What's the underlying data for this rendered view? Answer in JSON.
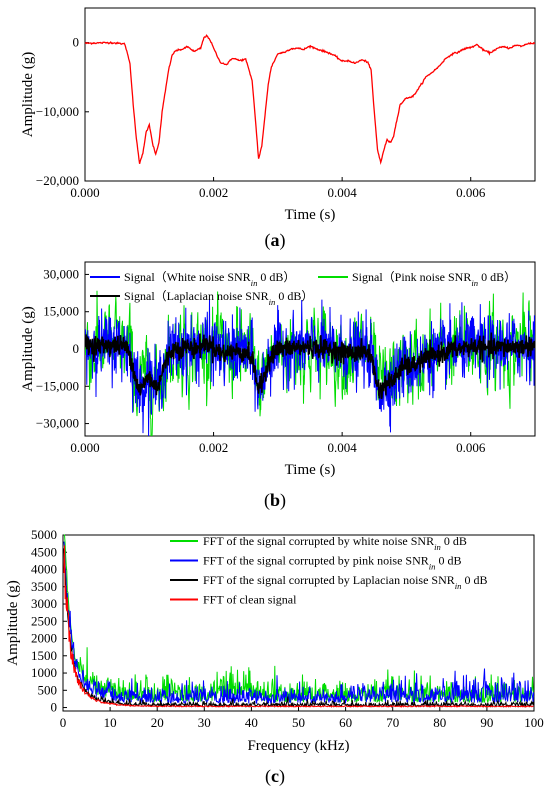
{
  "chart_data": [
    {
      "type": "line",
      "panel_label_letter": "a",
      "xlabel": "Time (s)",
      "ylabel": "Amplitude (g)",
      "xlim": [
        0,
        0.007
      ],
      "ylim": [
        -20000,
        5000
      ],
      "xticks": [
        0.0,
        0.002,
        0.004,
        0.006
      ],
      "xtick_labels": [
        "0.000",
        "0.002",
        "0.004",
        "0.006"
      ],
      "yticks": [
        0,
        -10000,
        -20000
      ],
      "ytick_labels": [
        "0",
        "−10,000",
        "−20,000"
      ],
      "grid": false,
      "series": [
        {
          "color": "#ff0000",
          "x": [
            0.0,
            0.0004,
            0.00062,
            0.0007,
            0.00075,
            0.0008,
            0.00085,
            0.0009,
            0.00095,
            0.001,
            0.00105,
            0.0011,
            0.00115,
            0.0012,
            0.00125,
            0.0013,
            0.00135,
            0.0014,
            0.0015,
            0.0016,
            0.0017,
            0.0018,
            0.00185,
            0.0019,
            0.00195,
            0.002,
            0.0021,
            0.0022,
            0.0023,
            0.0024,
            0.0025,
            0.0026,
            0.00265,
            0.0027,
            0.00275,
            0.0028,
            0.00285,
            0.0029,
            0.003,
            0.0031,
            0.0032,
            0.0033,
            0.0034,
            0.0035,
            0.0036,
            0.0037,
            0.0038,
            0.0039,
            0.004,
            0.0041,
            0.0042,
            0.0043,
            0.0044,
            0.00445,
            0.0045,
            0.00455,
            0.0046,
            0.00465,
            0.0047,
            0.00475,
            0.0048,
            0.0049,
            0.005,
            0.0051,
            0.0052,
            0.0053,
            0.0054,
            0.0055,
            0.0056,
            0.0057,
            0.0058,
            0.0059,
            0.006,
            0.0061,
            0.0062,
            0.0063,
            0.0064,
            0.0065,
            0.0066,
            0.0067,
            0.0068,
            0.0069,
            0.007
          ],
          "y": [
            -100,
            0,
            -200,
            -3000,
            -9000,
            -14000,
            -17500,
            -16000,
            -13000,
            -11800,
            -14500,
            -16200,
            -14500,
            -10000,
            -7000,
            -4000,
            -2000,
            -1200,
            -1000,
            -600,
            -1300,
            -800,
            700,
            1000,
            300,
            -800,
            -2800,
            -3200,
            -2200,
            -2600,
            -2400,
            -5500,
            -11000,
            -16800,
            -15000,
            -10500,
            -6000,
            -3500,
            -1600,
            -1400,
            -900,
            -800,
            -1000,
            -500,
            -900,
            -1200,
            -1500,
            -2000,
            -2700,
            -2600,
            -3000,
            -2500,
            -2800,
            -4000,
            -10000,
            -15500,
            -17300,
            -15500,
            -14000,
            -14500,
            -13500,
            -9000,
            -8000,
            -7800,
            -6500,
            -5000,
            -4300,
            -3500,
            -2400,
            -1700,
            -1400,
            -900,
            -700,
            -300,
            -1100,
            -1500,
            -900,
            -600,
            -800,
            -400,
            -500,
            -100,
            -100
          ]
        }
      ]
    },
    {
      "type": "line",
      "panel_label_letter": "b",
      "xlabel": "Time (s)",
      "ylabel": "Amplitude (g)",
      "xlim": [
        0,
        0.007
      ],
      "ylim": [
        -35000,
        35000
      ],
      "xticks": [
        0.0,
        0.002,
        0.004,
        0.006
      ],
      "xtick_labels": [
        "0.000",
        "0.002",
        "0.004",
        "0.006"
      ],
      "yticks": [
        30000,
        15000,
        0,
        -15000,
        -30000
      ],
      "ytick_labels": [
        "30,000",
        "15,000",
        "0",
        "−15,000",
        "−30,000"
      ],
      "grid": false,
      "legend_position": "top",
      "series": [
        {
          "name_parts": [
            "Signal（White noise SNR",
            "in",
            " 0 dB）"
          ],
          "color": "#0000ff",
          "noise_amplitude": 12000
        },
        {
          "name_parts": [
            "Signal（Pink noise SNR",
            "in",
            " 0 dB）"
          ],
          "color": "#00dd00",
          "noise_amplitude": 11000
        },
        {
          "name_parts": [
            "Signal（Laplacian noise SNR",
            "in",
            " 0 dB）"
          ],
          "color": "#000000",
          "noise_amplitude": 2500
        }
      ]
    },
    {
      "type": "line",
      "panel_label_letter": "c",
      "xlabel": "Frequency (kHz)",
      "ylabel": "Amplitude (g)",
      "xlim": [
        0,
        100
      ],
      "ylim": [
        -100,
        5000
      ],
      "xticks": [
        0,
        10,
        20,
        30,
        40,
        50,
        60,
        70,
        80,
        90,
        100
      ],
      "xtick_labels": [
        "0",
        "10",
        "20",
        "30",
        "40",
        "50",
        "60",
        "70",
        "80",
        "90",
        "100"
      ],
      "yticks": [
        0,
        500,
        1000,
        1500,
        2000,
        2500,
        3000,
        3500,
        4000,
        4500,
        5000
      ],
      "ytick_labels": [
        "0",
        "500",
        "1000",
        "1500",
        "2000",
        "2500",
        "3000",
        "3500",
        "4000",
        "4500",
        "5000"
      ],
      "grid": false,
      "legend_position": "top-right",
      "series": [
        {
          "name_parts": [
            "FFT of the signal corrupted by white noise SNR",
            "in",
            " 0 dB"
          ],
          "color": "#00dd00",
          "peak": 4500,
          "floor": 420
        },
        {
          "name_parts": [
            "FFT of the signal corrupted by pink noise SNR",
            "in",
            " 0 dB"
          ],
          "color": "#0000ff",
          "peak": 4000,
          "floor": 330
        },
        {
          "name_parts": [
            "FFT of the signal corrupted by Laplacian noise SNR",
            "in",
            " 0 dB"
          ],
          "color": "#000000",
          "peak": 3900,
          "floor": 90
        },
        {
          "name_parts": [
            "FFT of clean signal"
          ],
          "color": "#ff0000",
          "peak": 3900,
          "floor": 40
        }
      ]
    }
  ]
}
